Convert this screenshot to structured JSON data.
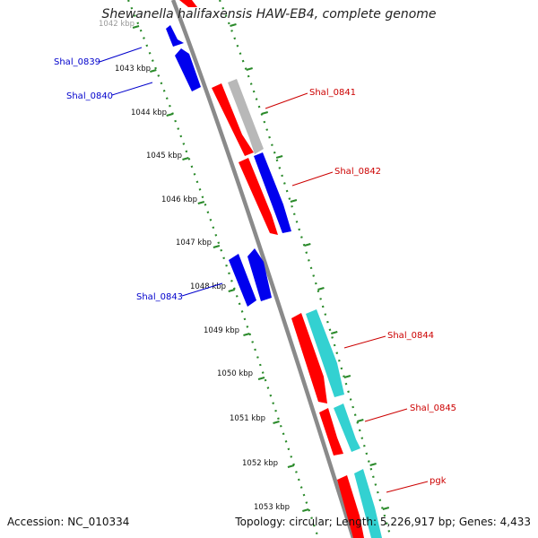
{
  "title": "Shewanella halifaxensis HAW-EB4, complete genome",
  "footer": {
    "accession": "Accession: NC_010334",
    "topology": "Topology: circular; Length: 5,226,917 bp; Genes: 4,433"
  },
  "colors": {
    "backbone": "#8a8a8a",
    "tick": "#2a8a2a",
    "forward_label": "#cc0000",
    "reverse_label": "#0000cc",
    "gray_gene": "#b8b8b8",
    "red_gene": "#ff0000",
    "blue_gene": "#0000ee",
    "cyan_gene": "#33d1d1"
  },
  "ticks": [
    "1042 kbp",
    "1043 kbp",
    "1044 kbp",
    "1045 kbp",
    "1046 kbp",
    "1047 kbp",
    "1048 kbp",
    "1049 kbp",
    "1050 kbp",
    "1051 kbp",
    "1052 kbp",
    "1053 kbp"
  ],
  "gene_labels": [
    {
      "name": "Shal_0839",
      "strand": "reverse"
    },
    {
      "name": "Shal_0840",
      "strand": "reverse"
    },
    {
      "name": "Shal_0841",
      "strand": "forward"
    },
    {
      "name": "Shal_0842",
      "strand": "forward"
    },
    {
      "name": "Shal_0843",
      "strand": "reverse"
    },
    {
      "name": "Shal_0844",
      "strand": "forward"
    },
    {
      "name": "Shal_0845",
      "strand": "forward"
    },
    {
      "name": "pgk",
      "strand": "forward"
    }
  ]
}
